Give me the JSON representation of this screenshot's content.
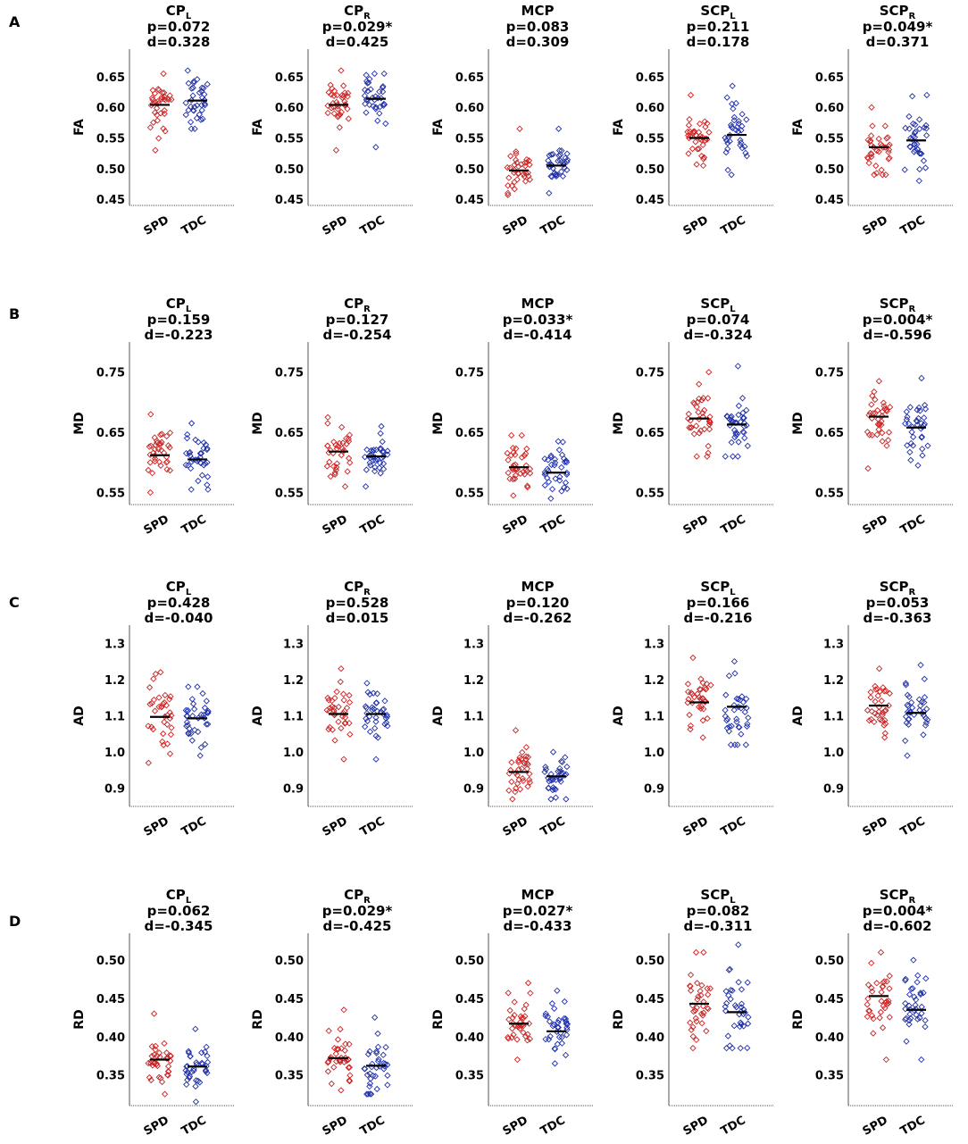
{
  "chart_data": [
    {
      "type": "scatter",
      "row_label": "A",
      "ylabel": "FA",
      "yticks": [
        "0.65",
        "0.60",
        "0.55",
        "0.50",
        "0.45"
      ],
      "ylim": [
        0.44,
        0.695
      ],
      "categories": [
        "SPD",
        "TDC"
      ],
      "panels": [
        {
          "region": "CP",
          "sub": "L",
          "p": "p=0.072",
          "d": "d=0.328",
          "means": [
            0.604,
            0.611
          ],
          "spread": [
            0.026,
            0.024
          ],
          "range": [
            [
              0.53,
              0.655
            ],
            [
              0.565,
              0.66
            ]
          ]
        },
        {
          "region": "CP",
          "sub": "R",
          "p": "p=0.029*",
          "d": "d=0.425",
          "means": [
            0.604,
            0.614
          ],
          "spread": [
            0.026,
            0.024
          ],
          "range": [
            [
              0.53,
              0.66
            ],
            [
              0.535,
              0.655
            ]
          ]
        },
        {
          "region": "MCP",
          "sub": "",
          "p": "p=0.083",
          "d": "d=0.309",
          "means": [
            0.497,
            0.505
          ],
          "spread": [
            0.02,
            0.02
          ],
          "range": [
            [
              0.457,
              0.565
            ],
            [
              0.46,
              0.565
            ]
          ]
        },
        {
          "region": "SCP",
          "sub": "L",
          "p": "p=0.211",
          "d": "d=0.178",
          "means": [
            0.55,
            0.555
          ],
          "spread": [
            0.026,
            0.028
          ],
          "range": [
            [
              0.505,
              0.62
            ],
            [
              0.49,
              0.635
            ]
          ]
        },
        {
          "region": "SCP",
          "sub": "R",
          "p": "p=0.049*",
          "d": "d=0.371",
          "means": [
            0.535,
            0.546
          ],
          "spread": [
            0.026,
            0.028
          ],
          "range": [
            [
              0.49,
              0.6
            ],
            [
              0.48,
              0.62
            ]
          ]
        }
      ]
    },
    {
      "type": "scatter",
      "row_label": "B",
      "ylabel": "MD",
      "yticks": [
        "0.75",
        "0.65",
        "0.55"
      ],
      "ylim": [
        0.53,
        0.8
      ],
      "categories": [
        "SPD",
        "TDC"
      ],
      "panels": [
        {
          "region": "CP",
          "sub": "L",
          "p": "p=0.159",
          "d": "d=-0.223",
          "means": [
            0.612,
            0.605
          ],
          "spread": [
            0.03,
            0.025
          ],
          "range": [
            [
              0.55,
              0.68
            ],
            [
              0.555,
              0.665
            ]
          ]
        },
        {
          "region": "CP",
          "sub": "R",
          "p": "p=0.127",
          "d": "d=-0.254",
          "means": [
            0.618,
            0.61
          ],
          "spread": [
            0.026,
            0.025
          ],
          "range": [
            [
              0.56,
              0.675
            ],
            [
              0.56,
              0.66
            ]
          ]
        },
        {
          "region": "MCP",
          "sub": "",
          "p": "p=0.033*",
          "d": "d=-0.414",
          "means": [
            0.592,
            0.583
          ],
          "spread": [
            0.025,
            0.025
          ],
          "range": [
            [
              0.545,
              0.645
            ],
            [
              0.54,
              0.635
            ]
          ]
        },
        {
          "region": "SCP",
          "sub": "L",
          "p": "p=0.074",
          "d": "d=-0.324",
          "means": [
            0.673,
            0.663
          ],
          "spread": [
            0.03,
            0.03
          ],
          "range": [
            [
              0.61,
              0.75
            ],
            [
              0.61,
              0.76
            ]
          ]
        },
        {
          "region": "SCP",
          "sub": "R",
          "p": "p=0.004*",
          "d": "d=-0.596",
          "means": [
            0.676,
            0.658
          ],
          "spread": [
            0.027,
            0.028
          ],
          "range": [
            [
              0.59,
              0.735
            ],
            [
              0.595,
              0.74
            ]
          ]
        }
      ]
    },
    {
      "type": "scatter",
      "row_label": "C",
      "ylabel": "AD",
      "yticks": [
        "1.3",
        "1.2",
        "1.1",
        "1.0",
        "0.9"
      ],
      "ylim": [
        0.85,
        1.35
      ],
      "categories": [
        "SPD",
        "TDC"
      ],
      "panels": [
        {
          "region": "CP",
          "sub": "L",
          "p": "p=0.428",
          "d": "d=-0.040",
          "means": [
            1.097,
            1.093
          ],
          "spread": [
            0.055,
            0.045
          ],
          "range": [
            [
              0.97,
              1.22
            ],
            [
              0.99,
              1.18
            ]
          ]
        },
        {
          "region": "CP",
          "sub": "R",
          "p": "p=0.528",
          "d": "d=0.015",
          "means": [
            1.105,
            1.105
          ],
          "spread": [
            0.05,
            0.045
          ],
          "range": [
            [
              0.98,
              1.23
            ],
            [
              0.98,
              1.19
            ]
          ]
        },
        {
          "region": "MCP",
          "sub": "",
          "p": "p=0.120",
          "d": "d=-0.262",
          "means": [
            0.945,
            0.933
          ],
          "spread": [
            0.04,
            0.035
          ],
          "range": [
            [
              0.87,
              1.06
            ],
            [
              0.87,
              1.0
            ]
          ]
        },
        {
          "region": "SCP",
          "sub": "L",
          "p": "p=0.166",
          "d": "d=-0.216",
          "means": [
            1.137,
            1.125
          ],
          "spread": [
            0.05,
            0.05
          ],
          "range": [
            [
              1.04,
              1.26
            ],
            [
              1.02,
              1.25
            ]
          ]
        },
        {
          "region": "SCP",
          "sub": "R",
          "p": "p=0.053",
          "d": "d=-0.363",
          "means": [
            1.128,
            1.108
          ],
          "spread": [
            0.05,
            0.05
          ],
          "range": [
            [
              1.04,
              1.23
            ],
            [
              0.99,
              1.24
            ]
          ]
        }
      ]
    },
    {
      "type": "scatter",
      "row_label": "D",
      "ylabel": "RD",
      "yticks": [
        "0.50",
        "0.45",
        "0.40",
        "0.35"
      ],
      "ylim": [
        0.31,
        0.535
      ],
      "categories": [
        "SPD",
        "TDC"
      ],
      "panels": [
        {
          "region": "CP",
          "sub": "L",
          "p": "p=0.062",
          "d": "d=-0.345",
          "means": [
            0.37,
            0.361
          ],
          "spread": [
            0.02,
            0.02
          ],
          "range": [
            [
              0.325,
              0.43
            ],
            [
              0.315,
              0.41
            ]
          ]
        },
        {
          "region": "CP",
          "sub": "R",
          "p": "p=0.029*",
          "d": "d=-0.425",
          "means": [
            0.372,
            0.362
          ],
          "spread": [
            0.022,
            0.022
          ],
          "range": [
            [
              0.33,
              0.435
            ],
            [
              0.325,
              0.425
            ]
          ]
        },
        {
          "region": "MCP",
          "sub": "",
          "p": "p=0.027*",
          "d": "d=-0.433",
          "means": [
            0.417,
            0.407
          ],
          "spread": [
            0.022,
            0.022
          ],
          "range": [
            [
              0.37,
              0.47
            ],
            [
              0.365,
              0.46
            ]
          ]
        },
        {
          "region": "SCP",
          "sub": "L",
          "p": "p=0.082",
          "d": "d=-0.311",
          "means": [
            0.443,
            0.432
          ],
          "spread": [
            0.028,
            0.032
          ],
          "range": [
            [
              0.385,
              0.51
            ],
            [
              0.385,
              0.52
            ]
          ]
        },
        {
          "region": "SCP",
          "sub": "R",
          "p": "p=0.004*",
          "d": "d=-0.602",
          "means": [
            0.453,
            0.435
          ],
          "spread": [
            0.03,
            0.03
          ],
          "range": [
            [
              0.37,
              0.51
            ],
            [
              0.37,
              0.5
            ]
          ]
        }
      ]
    }
  ],
  "colors": {
    "SPD": "#cc2222",
    "TDC": "#1f2fa8",
    "mean_line": "#000000",
    "axis": "#555555"
  }
}
